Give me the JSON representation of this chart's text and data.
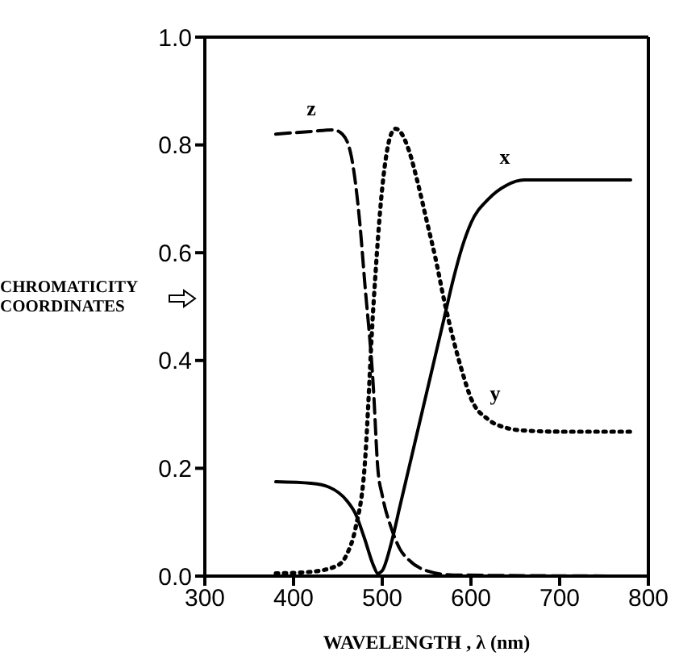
{
  "chart_data": {
    "type": "line",
    "xlabel": "WAVELENGTH , λ (nm)",
    "ylabel": "CHROMATICITY COORDINATES",
    "xlim": [
      300,
      800
    ],
    "xticks": [
      300,
      400,
      500,
      600,
      700,
      800
    ],
    "ylim": [
      0,
      1
    ],
    "yticks": [
      {
        "value": 0,
        "label": "0.0"
      },
      {
        "value": 0.2,
        "label": "0.2"
      },
      {
        "value": 0.4,
        "label": "0.4"
      },
      {
        "value": 0.6,
        "label": "0.6"
      },
      {
        "value": 0.8,
        "label": "0.8"
      },
      {
        "value": 1,
        "label": "1.0"
      }
    ],
    "grid": false,
    "legend": false,
    "marker": "none",
    "series": [
      {
        "name": "x",
        "color": "#000000",
        "line_style": "solid",
        "x": [
          380,
          420,
          440,
          460,
          470,
          480,
          490,
          495,
          500,
          510,
          520,
          530,
          540,
          550,
          560,
          570,
          580,
          590,
          600,
          620,
          640,
          660,
          700,
          780
        ],
        "values": [
          0.175,
          0.172,
          0.165,
          0.14,
          0.115,
          0.07,
          0.02,
          0.005,
          0.01,
          0.06,
          0.13,
          0.2,
          0.27,
          0.34,
          0.41,
          0.48,
          0.55,
          0.61,
          0.655,
          0.7,
          0.725,
          0.735,
          0.735,
          0.735
        ]
      },
      {
        "name": "y",
        "color": "#000000",
        "line_style": "dotted",
        "x": [
          380,
          420,
          450,
          460,
          470,
          480,
          490,
          500,
          510,
          515,
          520,
          530,
          540,
          550,
          560,
          570,
          580,
          590,
          600,
          620,
          640,
          660,
          700,
          780
        ],
        "values": [
          0.005,
          0.008,
          0.02,
          0.04,
          0.09,
          0.2,
          0.5,
          0.72,
          0.82,
          0.83,
          0.825,
          0.79,
          0.73,
          0.66,
          0.59,
          0.51,
          0.44,
          0.38,
          0.33,
          0.29,
          0.275,
          0.27,
          0.268,
          0.268
        ]
      },
      {
        "name": "z",
        "color": "#000000",
        "line_style": "dashed",
        "x": [
          380,
          420,
          445,
          455,
          465,
          475,
          480,
          490,
          495,
          500,
          510,
          520,
          530,
          550,
          580,
          780
        ],
        "values": [
          0.82,
          0.825,
          0.828,
          0.82,
          0.78,
          0.65,
          0.55,
          0.35,
          0.2,
          0.15,
          0.09,
          0.05,
          0.03,
          0.01,
          0.002,
          0
        ]
      }
    ]
  }
}
